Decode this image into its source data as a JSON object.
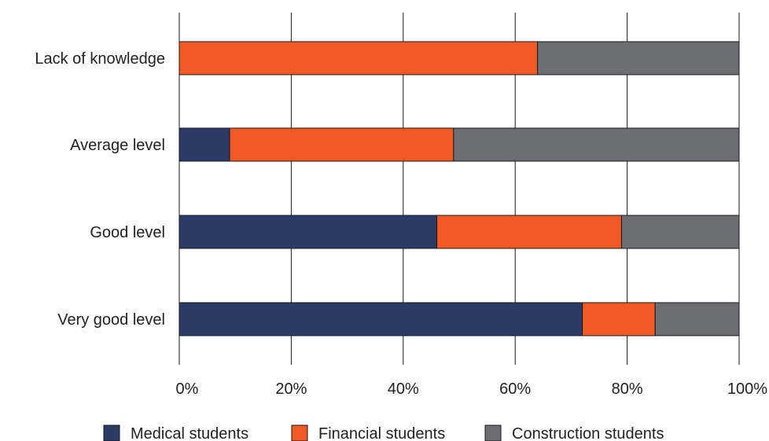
{
  "chart_data": {
    "type": "bar",
    "orientation": "horizontal",
    "stacked": true,
    "categories": [
      "Lack of knowledge",
      "Average level",
      "Good level",
      "Very good level"
    ],
    "series": [
      {
        "name": "Medical students",
        "values": [
          0,
          9,
          46,
          72
        ],
        "color": "#2b3a67"
      },
      {
        "name": "Financial students",
        "values": [
          64,
          40,
          33,
          13
        ],
        "color": "#f15a24"
      },
      {
        "name": "Construction students",
        "values": [
          36,
          51,
          21,
          15
        ],
        "color": "#6d6e71"
      }
    ],
    "x_ticks": [
      "0%",
      "20%",
      "40%",
      "60%",
      "80%",
      "100%"
    ],
    "xlim": [
      0,
      100
    ],
    "grid": true,
    "legend_position": "bottom"
  }
}
